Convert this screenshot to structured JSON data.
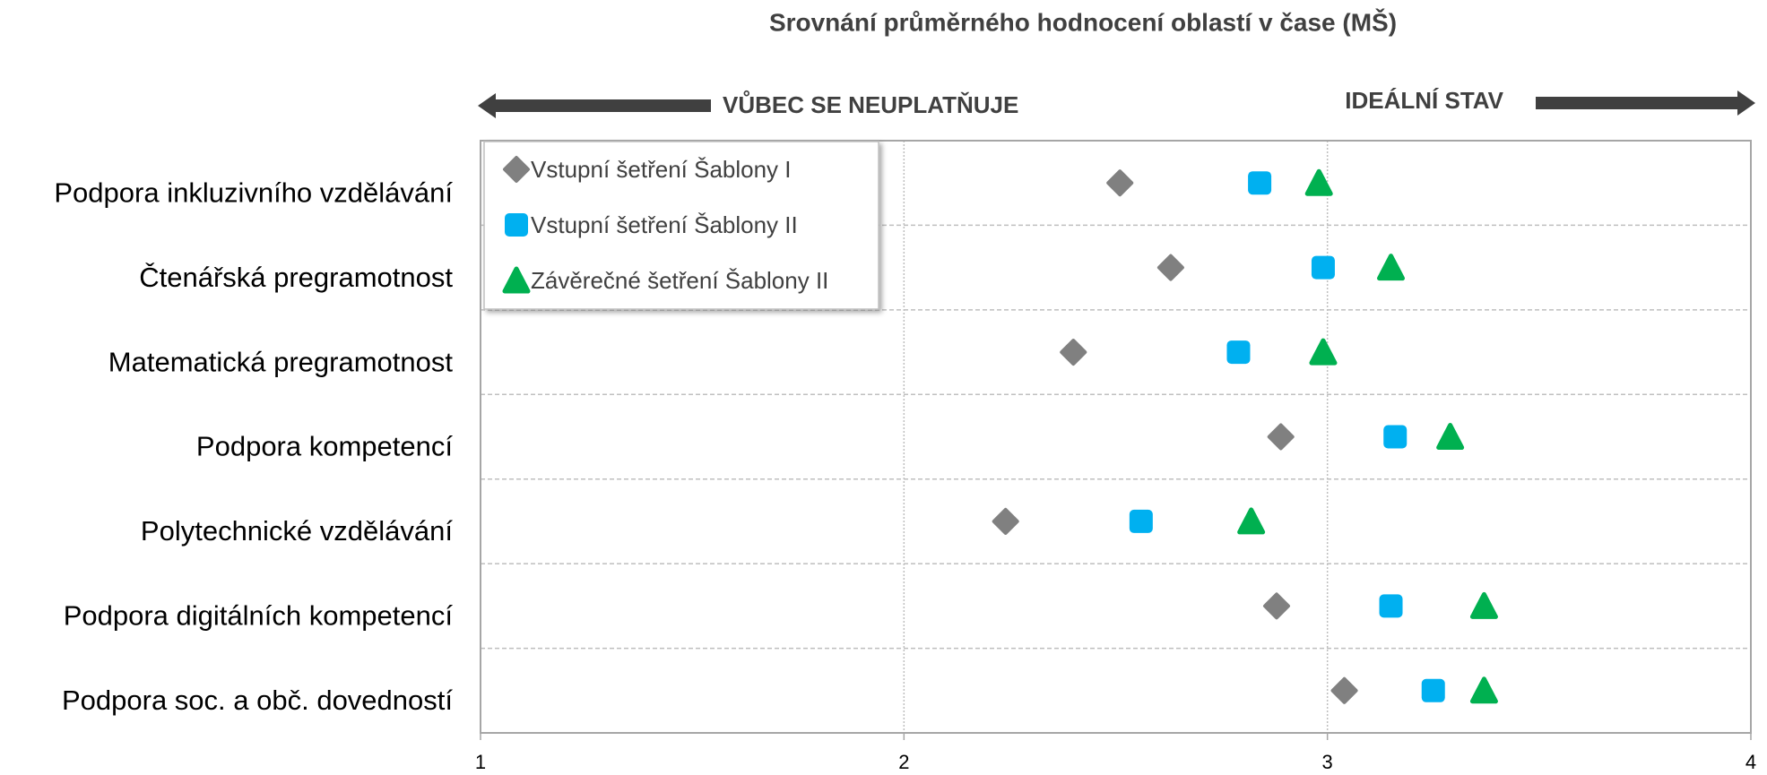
{
  "chart_data": {
    "type": "dot",
    "title": "Srovnání průměrného hodnocení oblastí v čase (MŠ)",
    "annotations": [
      "VŮBEC SE NEUPLATŇUJE",
      "IDEÁLNÍ STAV"
    ],
    "categories": [
      "Podpora inkluzivního vzdělávání",
      "Čtenářská pregramotnost",
      "Matematická pregramotnost",
      "Podpora kompetencí",
      "Polytechnické vzdělávání",
      "Podpora digitálních kompetencí",
      "Podpora soc. a obč. dovedností"
    ],
    "series": [
      {
        "name": "Vstupní šetření Šablony I",
        "color": "#808080",
        "marker": "diamond",
        "values": [
          2.51,
          2.63,
          2.4,
          2.89,
          2.24,
          2.88,
          3.04
        ]
      },
      {
        "name": "Vstupní šetření Šablony II",
        "color": "#00b0f0",
        "marker": "square",
        "values": [
          2.84,
          2.99,
          2.79,
          3.16,
          2.56,
          3.15,
          3.25
        ]
      },
      {
        "name": "Závěrečné šetření Šablony II",
        "color": "#00b050",
        "marker": "triangle",
        "values": [
          2.98,
          3.15,
          2.99,
          3.29,
          2.82,
          3.37,
          3.37
        ]
      }
    ],
    "xlim": [
      1,
      4
    ],
    "xticks": [
      1,
      2,
      3,
      4
    ],
    "grid": true,
    "legend": "top-left"
  }
}
